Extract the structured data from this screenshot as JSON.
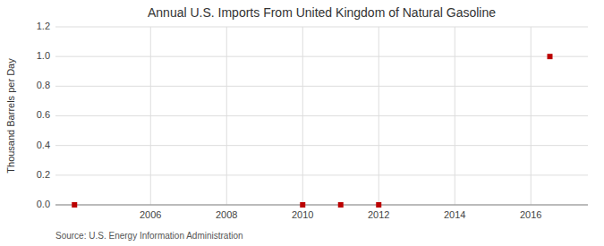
{
  "chart_data": {
    "type": "scatter",
    "title": "Annual U.S. Imports From United Kingdom of Natural Gasoline",
    "y_label": "Thousand Barrels per Day",
    "source": "Source: U.S. Energy Information Administration",
    "x": [
      2004,
      2010,
      2011,
      2012,
      2016.5
    ],
    "values": [
      0.0,
      0.0,
      0.0,
      0.0,
      1.0
    ],
    "color": "#BB0000",
    "marker": "square",
    "xlim": [
      2003.5,
      2017.5
    ],
    "ylim": [
      0.0,
      1.2
    ],
    "xticks": [
      2006,
      2008,
      2010,
      2012,
      2014,
      2016
    ],
    "yticks": [
      {
        "value": 0.0,
        "label": "0.0"
      },
      0.2,
      0.4,
      0.6,
      0.8,
      {
        "value": 1.0,
        "label": "1.0"
      },
      1.2
    ],
    "grid": true
  }
}
